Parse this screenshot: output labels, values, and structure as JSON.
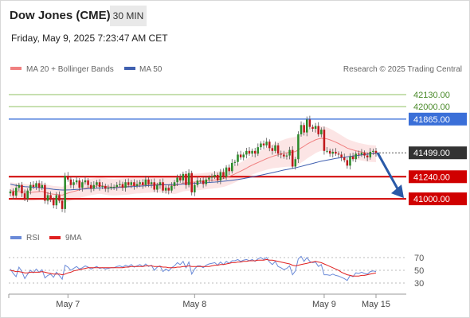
{
  "header": {
    "title": "Dow Jones (CME)",
    "interval": "30 MIN",
    "timestamp": "Friday, May 9, 2025 7:23:47 AM CET"
  },
  "legend": {
    "ma20_label": "MA 20 + Bollinger Bands",
    "ma50_label": "MA 50",
    "credit": "Research © 2025 Trading Central"
  },
  "osc_legend": {
    "rsi_label": "RSI",
    "ma9_label": "9MA"
  },
  "colors": {
    "bull": "#2a8a2a",
    "bear": "#c0181c",
    "resistance": "#3a6fd8",
    "support": "#d00000",
    "target": "#8fc060",
    "ma20": "#f08080",
    "ma50": "#4060b0",
    "band_fill": "#fbdcdc",
    "price_tag": "#333333",
    "rsi": "#6a8ad8",
    "rsi_ma": "#e02020",
    "arrow": "#2a5aa8"
  },
  "chart_data": {
    "type": "candlestick",
    "title": "Dow Jones (CME)",
    "timeframe": "30 MIN",
    "price_range": [
      40820,
      42320
    ],
    "x_axis": {
      "labels": [
        "May 7",
        "May 8",
        "May 9",
        "May 15"
      ],
      "label_bar_index": [
        20,
        64,
        109,
        127
      ]
    },
    "levels": [
      {
        "label": "42130.00",
        "value": 42130,
        "kind": "target"
      },
      {
        "label": "42000.00",
        "value": 42000,
        "kind": "target"
      },
      {
        "label": "41865.00",
        "value": 41865,
        "kind": "resistance"
      },
      {
        "label": "41240.00",
        "value": 41240,
        "kind": "support"
      },
      {
        "label": "41000.00",
        "value": 41000,
        "kind": "support"
      }
    ],
    "last_price": {
      "label": "41499.00",
      "value": 41499
    },
    "close": [
      41080,
      41035,
      41120,
      41150,
      41060,
      41000,
      41090,
      41150,
      41130,
      41170,
      41120,
      41150,
      40980,
      41040,
      40990,
      40930,
      41040,
      40980,
      40890,
      41250,
      41210,
      41150,
      41180,
      41200,
      41120,
      41180,
      41200,
      41150,
      41110,
      41150,
      41180,
      41130,
      41140,
      41110,
      41120,
      41130,
      41130,
      41150,
      41160,
      41120,
      41180,
      41150,
      41180,
      41140,
      41160,
      41180,
      41150,
      41210,
      41160,
      41180,
      41100,
      41150,
      41180,
      41090,
      41120,
      41090,
      41140,
      41180,
      41230,
      41200,
      41270,
      41150,
      41280,
      41070,
      41150,
      41200,
      41200,
      41160,
      41210,
      41230,
      41240,
      41260,
      41200,
      41290,
      41240,
      41340,
      41300,
      41390,
      41400,
      41480,
      41450,
      41480,
      41520,
      41490,
      41520,
      41490,
      41560,
      41600,
      41580,
      41620,
      41550,
      41520,
      41580,
      41490,
      41480,
      41460,
      41470,
      41530,
      41350,
      41430,
      41700,
      41800,
      41720,
      41860,
      41780,
      41760,
      41790,
      41700,
      41750,
      41520,
      41520,
      41490,
      41510,
      41490,
      41480,
      41450,
      41420,
      41360,
      41460,
      41430,
      41490,
      41480,
      41500,
      41470,
      41450,
      41510,
      41520,
      41499
    ],
    "ma20": [
      41090,
      41085,
      41080,
      41078,
      41075,
      41072,
      41070,
      41070,
      41072,
      41075,
      41078,
      41080,
      41070,
      41062,
      41055,
      41050,
      41048,
      41045,
      41040,
      41052,
      41062,
      41072,
      41080,
      41088,
      41098,
      41108,
      41116,
      41124,
      41130,
      41134,
      41140,
      41145,
      41140,
      41135,
      41130,
      41128,
      41126,
      41128,
      41130,
      41132,
      41134,
      41136,
      41140,
      41145,
      41148,
      41150,
      41152,
      41154,
      41156,
      41158,
      41160,
      41160,
      41158,
      41156,
      41154,
      41150,
      41145,
      41142,
      41150,
      41160,
      41170,
      41175,
      41178,
      41180,
      41182,
      41184,
      41186,
      41190,
      41194,
      41198,
      41200,
      41204,
      41208,
      41214,
      41220,
      41230,
      41242,
      41256,
      41270,
      41286,
      41300,
      41316,
      41332,
      41350,
      41366,
      41380,
      41394,
      41408,
      41422,
      41436,
      41448,
      41460,
      41470,
      41478,
      41486,
      41494,
      41500,
      41505,
      41508,
      41512,
      41530,
      41552,
      41570,
      41592,
      41610,
      41624,
      41640,
      41650,
      41655,
      41655,
      41650,
      41640,
      41628,
      41615,
      41600,
      41584,
      41568,
      41550,
      41540,
      41530,
      41522,
      41514,
      41508,
      41502,
      41496,
      41492,
      41490,
      41488
    ],
    "ma50": [
      41160,
      41152,
      41145,
      41140,
      41136,
      41133,
      41130,
      41128,
      41126,
      41124,
      41122,
      41120,
      41116,
      41112,
      41108,
      41104,
      41100,
      41098,
      41096,
      41096,
      41097,
      41098,
      41100,
      41102,
      41104,
      41106,
      41108,
      41110,
      41112,
      41114,
      41116,
      41118,
      41118,
      41118,
      41118,
      41118,
      41120,
      41122,
      41124,
      41126,
      41128,
      41130,
      41132,
      41134,
      41136,
      41138,
      41140,
      41142,
      41144,
      41146,
      41148,
      41150,
      41151,
      41152,
      41153,
      41154,
      41155,
      41156,
      41157,
      41158,
      41160,
      41162,
      41164,
      41166,
      41168,
      41170,
      41172,
      41174,
      41176,
      41178,
      41180,
      41182,
      41185,
      41188,
      41191,
      41194,
      41198,
      41202,
      41206,
      41210,
      41215,
      41220,
      41226,
      41232,
      41238,
      41244,
      41250,
      41256,
      41263,
      41270,
      41277,
      41284,
      41291,
      41298,
      41305,
      41312,
      41318,
      41324,
      41330,
      41336,
      41344,
      41352,
      41360,
      41368,
      41376,
      41384,
      41392,
      41400,
      41408,
      41414,
      41420,
      41426,
      41432,
      41438,
      41443,
      41448,
      41452,
      41456,
      41460,
      41464,
      41468,
      41472,
      41476,
      41480,
      41484,
      41488,
      41492,
      41496
    ],
    "forecast": {
      "from_value": 41499,
      "to_value": 41000
    },
    "oscillator": {
      "levels": [
        70,
        50,
        30
      ],
      "range": [
        20,
        80
      ],
      "rsi": [
        52,
        45,
        40,
        55,
        48,
        37,
        44,
        50,
        46,
        52,
        47,
        51,
        38,
        42,
        44,
        39,
        47,
        42,
        36,
        58,
        55,
        50,
        53,
        56,
        52,
        54,
        57,
        55,
        52,
        54,
        56,
        53,
        54,
        52,
        53,
        54,
        54,
        56,
        57,
        55,
        58,
        56,
        59,
        55,
        57,
        59,
        56,
        60,
        56,
        58,
        50,
        55,
        57,
        48,
        52,
        49,
        54,
        57,
        62,
        59,
        64,
        54,
        63,
        44,
        52,
        57,
        57,
        54,
        58,
        60,
        61,
        62,
        58,
        63,
        59,
        64,
        61,
        65,
        65,
        67,
        64,
        66,
        67,
        65,
        67,
        64,
        68,
        70,
        67,
        70,
        63,
        59,
        64,
        56,
        54,
        51,
        53,
        57,
        43,
        49,
        68,
        72,
        64,
        70,
        64,
        62,
        63,
        56,
        59,
        43,
        43,
        42,
        44,
        42,
        41,
        39,
        37,
        34,
        42,
        40,
        46,
        45,
        47,
        45,
        44,
        48,
        49,
        48
      ],
      "ma9": [
        50,
        49,
        48,
        48,
        47,
        46,
        46,
        47,
        47,
        47,
        47,
        48,
        47,
        46,
        45,
        44,
        44,
        44,
        43,
        44,
        46,
        47,
        49,
        50,
        51,
        52,
        53,
        54,
        54,
        54,
        54,
        54,
        54,
        54,
        54,
        54,
        54,
        54,
        54,
        54,
        55,
        55,
        56,
        56,
        56,
        56,
        56,
        57,
        57,
        57,
        56,
        56,
        56,
        55,
        55,
        54,
        54,
        54,
        55,
        55,
        56,
        56,
        57,
        56,
        56,
        56,
        56,
        56,
        56,
        56,
        57,
        58,
        58,
        59,
        59,
        60,
        61,
        62,
        62,
        63,
        63,
        64,
        64,
        65,
        65,
        65,
        66,
        66,
        66,
        67,
        66,
        66,
        65,
        64,
        63,
        62,
        61,
        60,
        58,
        57,
        58,
        59,
        60,
        61,
        62,
        63,
        64,
        63,
        62,
        60,
        58,
        56,
        54,
        52,
        50,
        47,
        45,
        43,
        42,
        41,
        41,
        41,
        42,
        42,
        43,
        44,
        45,
        46
      ]
    }
  }
}
